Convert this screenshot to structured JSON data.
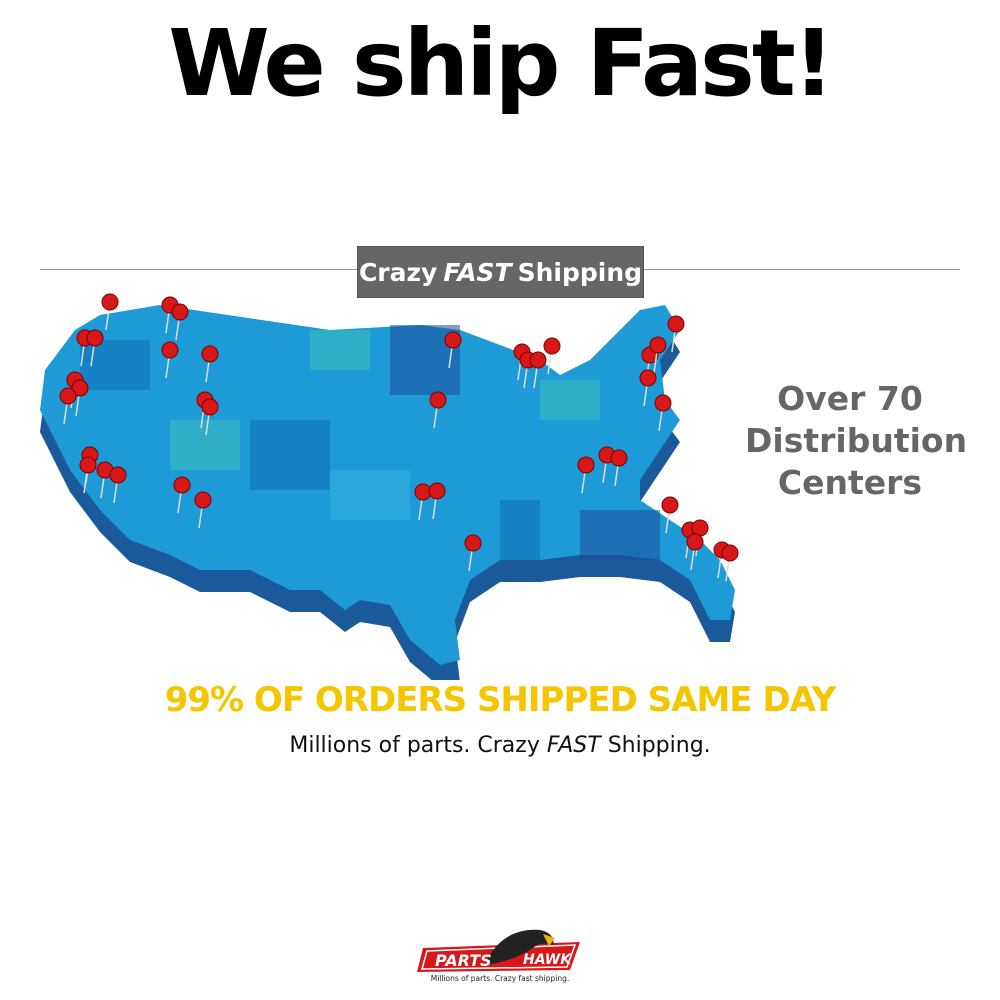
{
  "headline": "We ship Fast!",
  "banner": {
    "pre": "Crazy",
    "emph": "FAST",
    "post": "Shipping"
  },
  "callout": [
    "Over 70",
    "Distribution",
    "Centers"
  ],
  "stat": "99% OF ORDERS SHIPPED SAME DAY",
  "tagline": {
    "pre": "Millions of parts. Crazy",
    "emph": "FAST",
    "post": "Shipping."
  },
  "logo": {
    "left": "PARTS",
    "right": "HAWK",
    "slogan": "Millions of parts. Crazy fast shipping."
  },
  "colors": {
    "map": "#1e9ad6",
    "pin": "#d81818",
    "stat": "#f5c500",
    "banner": "#666666"
  }
}
